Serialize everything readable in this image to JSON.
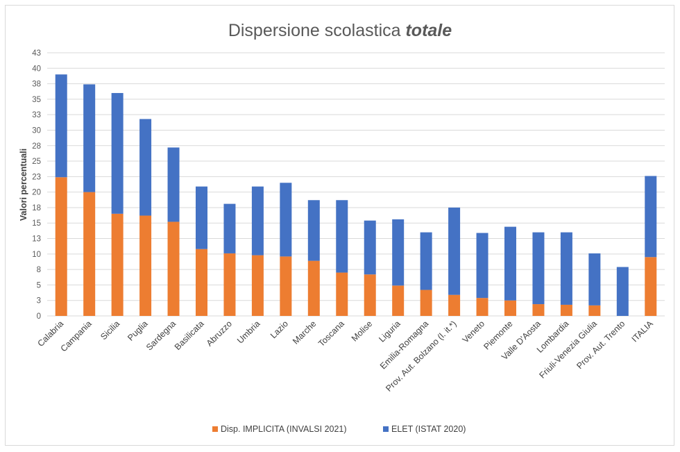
{
  "chart_data": {
    "type": "bar",
    "stacked": true,
    "title": "Dispersione scolastica",
    "title_emphasis": "totale",
    "xlabel": "",
    "ylabel": "Valori percentuali",
    "ylim": [
      0,
      42.5
    ],
    "yticks": [
      0,
      2.5,
      5,
      7.5,
      10,
      12.5,
      15,
      17.5,
      20,
      22.5,
      25,
      27.5,
      30,
      32.5,
      35,
      37.5,
      40,
      42.5
    ],
    "ytick_labels": [
      "0",
      "3",
      "5",
      "8",
      "10",
      "13",
      "15",
      "18",
      "20",
      "23",
      "25",
      "28",
      "30",
      "33",
      "35",
      "38",
      "40",
      "43"
    ],
    "grid": true,
    "legend_position": "bottom",
    "categories": [
      "Calabria",
      "Campania",
      "Sicilia",
      "Puglia",
      "Sardegna",
      "Basilicata",
      "Abruzzo",
      "Umbria",
      "Lazio",
      "Marche",
      "Toscana",
      "Molise",
      "Liguria",
      "Emilia-Romagna",
      "Prov. Aut. Bolzano (l. it.*)",
      "Veneto",
      "Piemonte",
      "Valle D'Aosta",
      "Lombardia",
      "Friuli-Venezia Giulia",
      "Prov. Aut. Trento",
      "ITALIA"
    ],
    "series": [
      {
        "name": "Disp. IMPLICITA (INVALSI 2021)",
        "color": "#ED7D31",
        "values": [
          22.4,
          20.0,
          16.5,
          16.2,
          15.2,
          10.8,
          10.1,
          9.8,
          9.6,
          8.9,
          7.0,
          6.7,
          4.9,
          4.2,
          3.4,
          2.9,
          2.5,
          1.9,
          1.8,
          1.7,
          0,
          9.5
        ]
      },
      {
        "name": "ELET (ISTAT 2020)",
        "color": "#4472C4",
        "values": [
          16.6,
          17.4,
          19.5,
          15.6,
          12.0,
          10.1,
          8.0,
          11.1,
          11.9,
          9.8,
          11.7,
          8.7,
          10.7,
          9.3,
          14.1,
          10.5,
          11.9,
          11.6,
          11.7,
          8.4,
          7.9,
          13.1
        ]
      }
    ]
  }
}
